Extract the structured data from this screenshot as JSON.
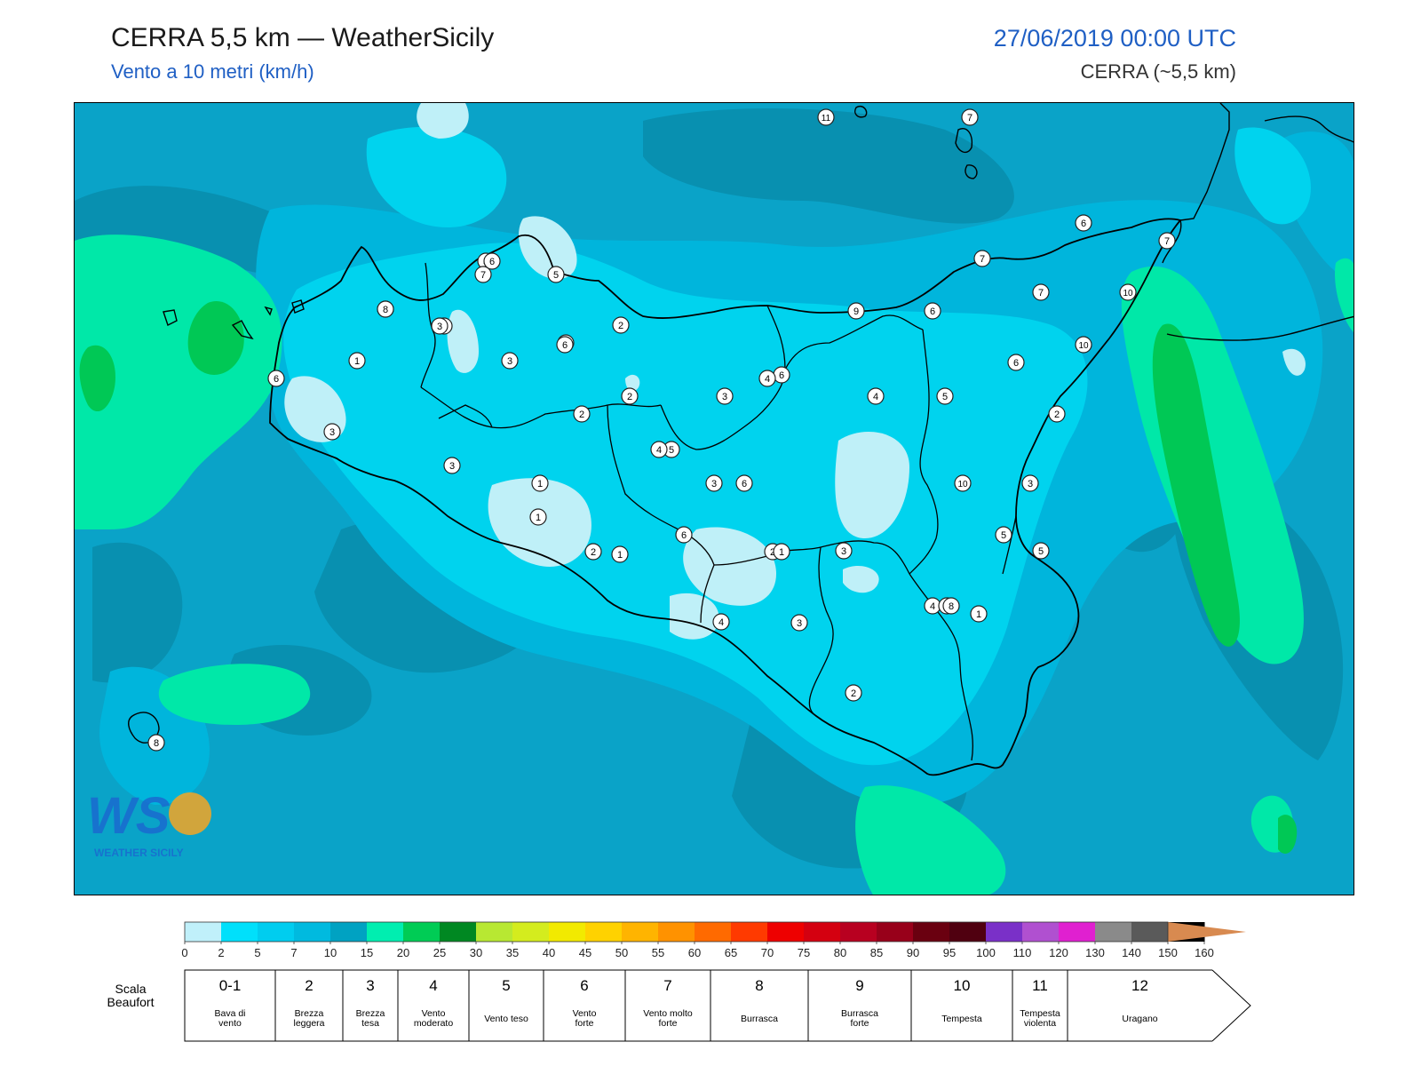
{
  "header": {
    "title": "CERRA 5,5 km — WeatherSicily",
    "subtitle": "Vento a 10 metri (km/h)",
    "datetime": "27/06/2019 00:00 UTC",
    "model": "CERRA (~5,5 km)"
  },
  "logo": {
    "text": "WEATHER SICILY",
    "letters": "WS"
  },
  "colors": {
    "sea_base": "#0aa3c8",
    "deep": "#0890b0",
    "mid": "#00b5dc",
    "light": "#00d3ee",
    "calm": "#bff0f8",
    "green_light": "#00e8a8",
    "green": "#00c855",
    "coast": "#000000"
  },
  "wind_scale": {
    "unit": "km/h",
    "ticks": [
      "0",
      "2",
      "5",
      "7",
      "10",
      "15",
      "20",
      "25",
      "30",
      "35",
      "40",
      "45",
      "50",
      "55",
      "60",
      "65",
      "70",
      "75",
      "80",
      "85",
      "90",
      "95",
      "100",
      "110",
      "120",
      "130",
      "140",
      "150",
      "160"
    ],
    "colors": [
      "#c0f0fa",
      "#00e0fb",
      "#00cdef",
      "#00badf",
      "#00a2c2",
      "#00eeb0",
      "#00cc55",
      "#008822",
      "#b8e832",
      "#d4ec1e",
      "#f2ea00",
      "#ffd200",
      "#ffb400",
      "#ff9200",
      "#ff6a00",
      "#ff3a00",
      "#ee0000",
      "#d40010",
      "#b80020",
      "#98001a",
      "#6a0010",
      "#500010",
      "#7a30c8",
      "#b050d0",
      "#e020d0",
      "#8a8a8a",
      "#5a5a5a",
      "#000000",
      "#8a4a28",
      "#d88a50"
    ]
  },
  "beaufort": {
    "label_line1": "Scala",
    "label_line2": "Beaufort",
    "classes": [
      {
        "force": "0-1",
        "name": "Bava di vento"
      },
      {
        "force": "2",
        "name": "Brezza leggera"
      },
      {
        "force": "3",
        "name": "Brezza tesa"
      },
      {
        "force": "4",
        "name": "Vento moderato"
      },
      {
        "force": "5",
        "name": "Vento teso"
      },
      {
        "force": "6",
        "name": "Vento forte"
      },
      {
        "force": "7",
        "name": "Vento molto forte"
      },
      {
        "force": "8",
        "name": "Burrasca"
      },
      {
        "force": "9",
        "name": "Burrasca forte"
      },
      {
        "force": "10",
        "name": "Tempesta"
      },
      {
        "force": "11",
        "name": "Tempesta violenta"
      },
      {
        "force": "12",
        "name": "Uragano"
      }
    ]
  },
  "stations": [
    "11",
    "7",
    "6",
    "7",
    "7",
    "7",
    "10",
    "9",
    "6",
    "10",
    "6",
    "5",
    "4",
    "6",
    "2",
    "3",
    "10",
    "5",
    "4",
    "5",
    "2",
    "3",
    "1",
    "7",
    "1",
    "6",
    "5",
    "3",
    "2",
    "4",
    "6",
    "2",
    "3",
    "4",
    "3",
    "5",
    "8",
    "6",
    "8",
    "7",
    "3",
    "3",
    "3",
    "2",
    "3",
    "3",
    "1",
    "2",
    "6",
    "4",
    "6",
    "2",
    "1",
    "1",
    "2",
    "4",
    "1",
    "3",
    "8"
  ]
}
